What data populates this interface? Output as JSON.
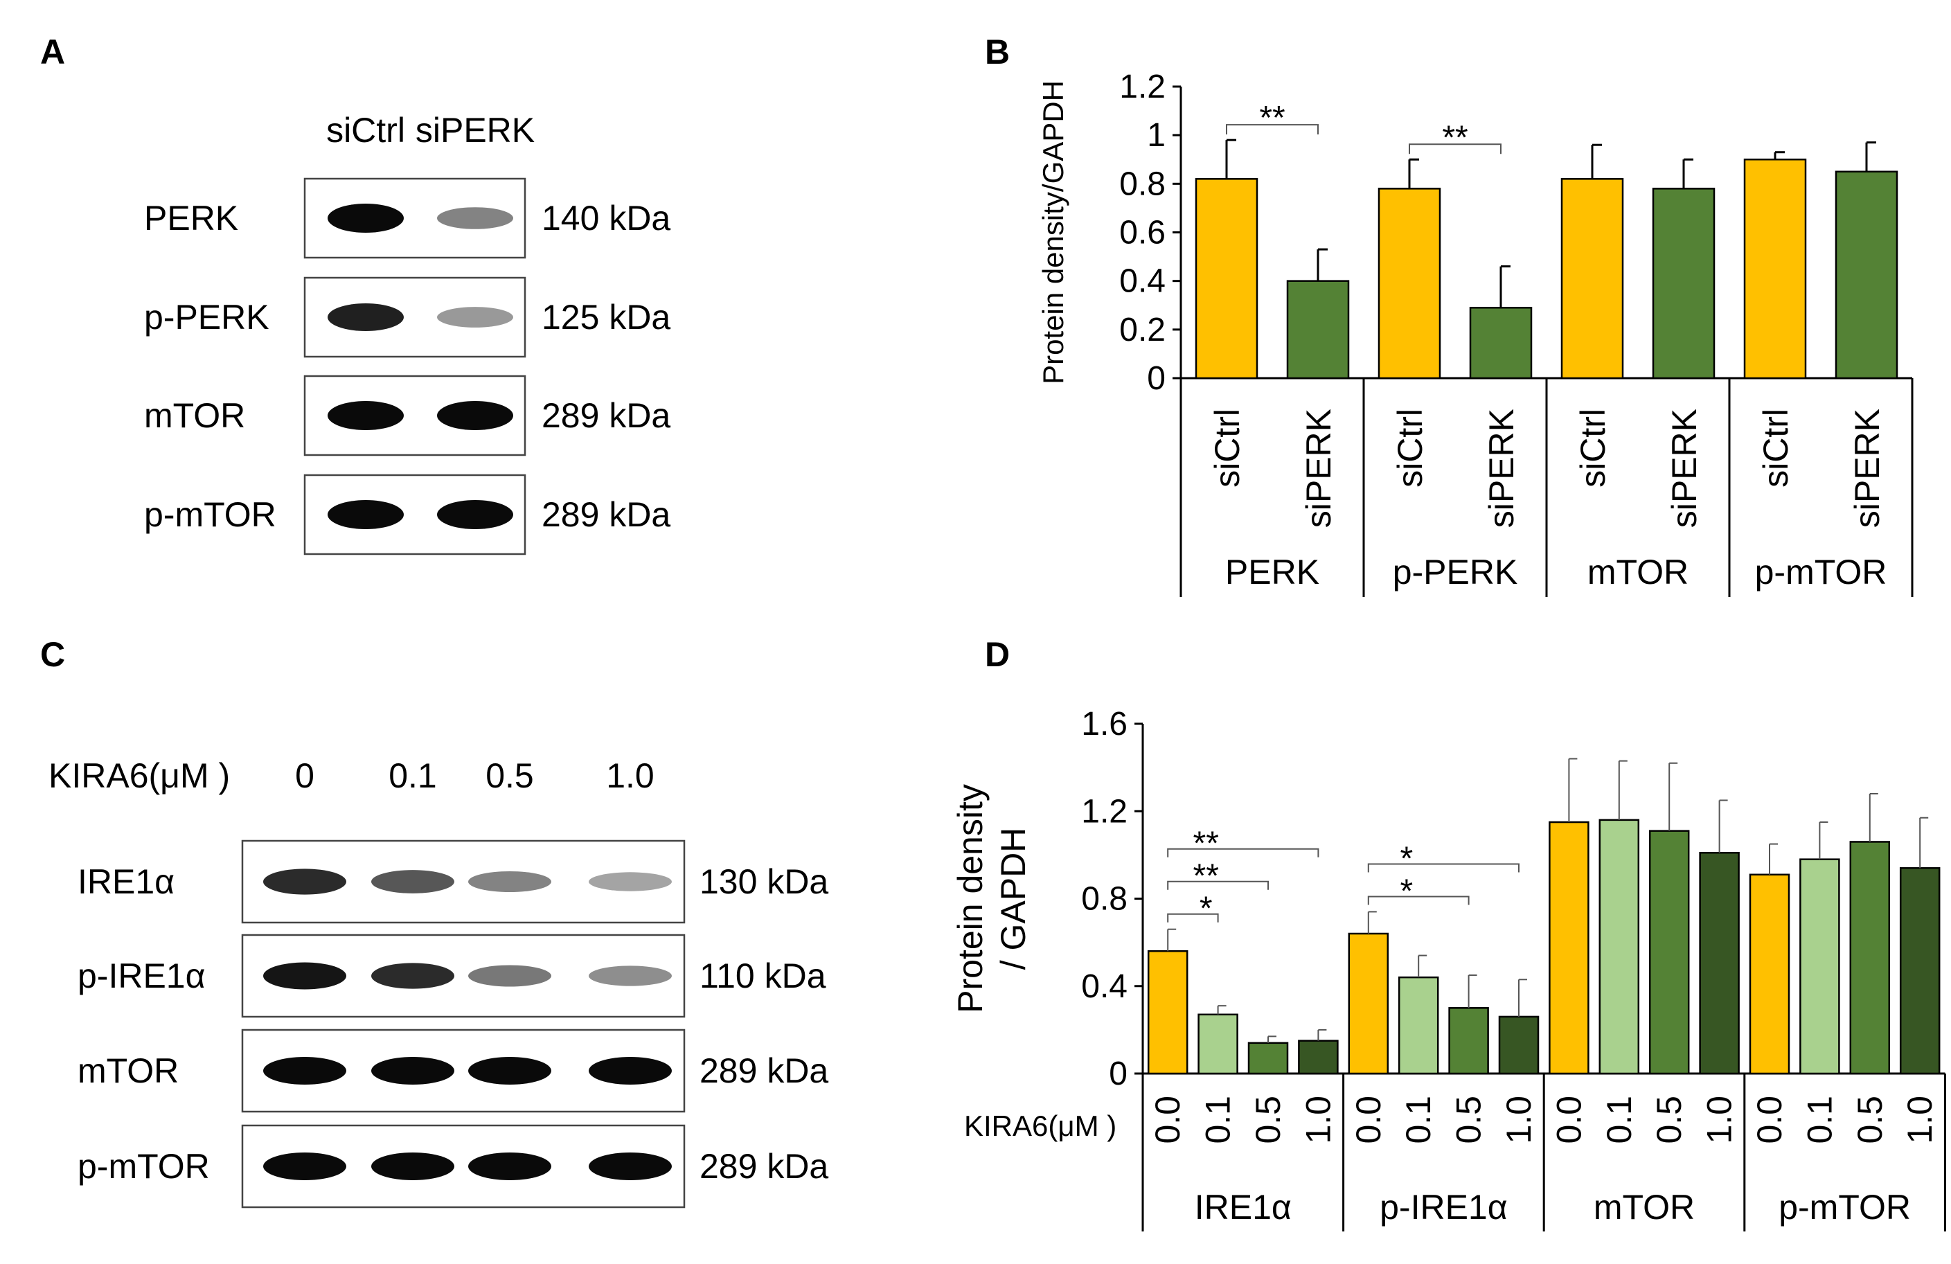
{
  "panels": {
    "A": {
      "letter": "A",
      "lane_labels": [
        "siCtrl",
        "siPERK"
      ],
      "rows": [
        {
          "protein": "PERK",
          "size": "140 kDa",
          "lanes": [
            1.0,
            0.45
          ]
        },
        {
          "protein": "p-PERK",
          "size": "125 kDa",
          "lanes": [
            0.9,
            0.35
          ]
        },
        {
          "protein": "mTOR",
          "size": "289 kDa",
          "lanes": [
            1.0,
            1.0
          ]
        },
        {
          "protein": "p-mTOR",
          "size": "289 kDa",
          "lanes": [
            1.0,
            1.0
          ]
        }
      ]
    },
    "C": {
      "letter": "C",
      "treatment_label": "KIRA6(μM )",
      "lane_labels": [
        "0",
        "0.1",
        "0.5",
        "1.0"
      ],
      "rows": [
        {
          "protein": "IRE1α",
          "size": "130 kDa",
          "lanes": [
            0.85,
            0.65,
            0.45,
            0.3
          ]
        },
        {
          "protein": "p-IRE1α",
          "size": "110 kDa",
          "lanes": [
            0.95,
            0.85,
            0.5,
            0.4
          ]
        },
        {
          "protein": "mTOR",
          "size": "289 kDa",
          "lanes": [
            1.0,
            1.0,
            1.0,
            1.0
          ]
        },
        {
          "protein": "p-mTOR",
          "size": "289 kDa",
          "lanes": [
            1.0,
            1.0,
            1.0,
            1.0
          ]
        }
      ]
    }
  },
  "chart_data": [
    {
      "panel": "B",
      "type": "bar",
      "ylabel": "Protein density/GAPDH",
      "ylim": [
        0,
        1.2
      ],
      "yticks": [
        "0",
        "0.2",
        "0.4",
        "0.6",
        "0.8",
        "1",
        "1.2"
      ],
      "groups": [
        {
          "name": "PERK",
          "bars": [
            {
              "label": "siCtrl",
              "value": 0.82,
              "err": 0.16,
              "color": "#FFC000"
            },
            {
              "label": "siPERK",
              "value": 0.4,
              "err": 0.13,
              "color": "#548235"
            }
          ]
        },
        {
          "name": "p-PERK",
          "bars": [
            {
              "label": "siCtrl",
              "value": 0.78,
              "err": 0.12,
              "color": "#FFC000"
            },
            {
              "label": "siPERK",
              "value": 0.29,
              "err": 0.17,
              "color": "#548235"
            }
          ]
        },
        {
          "name": "mTOR",
          "bars": [
            {
              "label": "siCtrl",
              "value": 0.82,
              "err": 0.14,
              "color": "#FFC000"
            },
            {
              "label": "siPERK",
              "value": 0.78,
              "err": 0.12,
              "color": "#548235"
            }
          ]
        },
        {
          "name": "p-mTOR",
          "bars": [
            {
              "label": "siCtrl",
              "value": 0.9,
              "err": 0.03,
              "color": "#FFC000"
            },
            {
              "label": "siPERK",
              "value": 0.85,
              "err": 0.12,
              "color": "#548235"
            }
          ]
        }
      ],
      "significance": [
        {
          "group": 0,
          "from": 0,
          "to": 1,
          "label": "**"
        },
        {
          "group": 1,
          "from": 0,
          "to": 1,
          "label": "**"
        }
      ]
    },
    {
      "panel": "D",
      "type": "bar",
      "ylabel": [
        "Protein density",
        "/ GAPDH"
      ],
      "xlabel": "KIRA6(μM )",
      "ylim": [
        0,
        1.6
      ],
      "yticks": [
        "0",
        "0.4",
        "0.8",
        "1.2",
        "1.6"
      ],
      "dose_labels": [
        "0.0",
        "0.1",
        "0.5",
        "1.0"
      ],
      "colors": [
        "#FFC000",
        "#A9D18E",
        "#548235",
        "#375623"
      ],
      "groups": [
        {
          "name": "IRE1α",
          "values": [
            0.56,
            0.27,
            0.14,
            0.15
          ],
          "errors": [
            0.1,
            0.04,
            0.03,
            0.05
          ]
        },
        {
          "name": "p-IRE1α",
          "values": [
            0.64,
            0.44,
            0.3,
            0.26
          ],
          "errors": [
            0.1,
            0.1,
            0.15,
            0.17
          ]
        },
        {
          "name": "mTOR",
          "values": [
            1.15,
            1.16,
            1.11,
            1.01
          ],
          "errors": [
            0.29,
            0.27,
            0.31,
            0.24
          ]
        },
        {
          "name": "p-mTOR",
          "values": [
            0.91,
            0.98,
            1.06,
            0.94
          ],
          "errors": [
            0.14,
            0.17,
            0.22,
            0.23
          ]
        }
      ],
      "significance": [
        {
          "group": 0,
          "from": 0,
          "to": 1,
          "label": "*"
        },
        {
          "group": 0,
          "from": 0,
          "to": 2,
          "label": "**"
        },
        {
          "group": 0,
          "from": 0,
          "to": 3,
          "label": "**"
        },
        {
          "group": 1,
          "from": 0,
          "to": 2,
          "label": "*"
        },
        {
          "group": 1,
          "from": 0,
          "to": 3,
          "label": "*"
        }
      ]
    }
  ]
}
